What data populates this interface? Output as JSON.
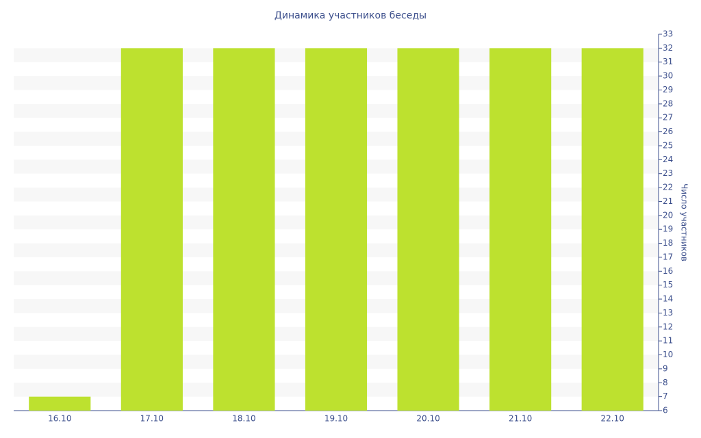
{
  "chart_data": {
    "type": "bar",
    "title": "Динамика участников беседы",
    "y_label": "Число участников",
    "categories": [
      "16.10",
      "17.10",
      "18.10",
      "19.10",
      "20.10",
      "21.10",
      "22.10"
    ],
    "values": [
      7,
      32,
      32,
      32,
      32,
      32,
      32
    ],
    "color": "#bde12f",
    "ylim": [
      6,
      33
    ],
    "yticks": [
      6,
      7,
      8,
      9,
      10,
      11,
      12,
      13,
      14,
      15,
      16,
      17,
      18,
      19,
      20,
      21,
      22,
      23,
      24,
      25,
      26,
      27,
      28,
      29,
      30,
      31,
      32,
      33
    ],
    "grid": "banded",
    "y_axis_side": "right"
  }
}
